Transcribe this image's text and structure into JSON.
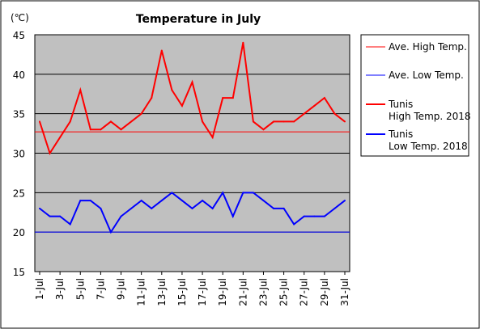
{
  "chart_data": {
    "type": "line",
    "title": "Temperature in July",
    "unit_label": "(℃)",
    "xlabel": "",
    "ylabel": "",
    "ylim": [
      15,
      45
    ],
    "yticks": [
      "15",
      "20",
      "25",
      "30",
      "35",
      "40",
      "45"
    ],
    "x": [
      1,
      2,
      3,
      4,
      5,
      6,
      7,
      8,
      9,
      10,
      11,
      12,
      13,
      14,
      15,
      16,
      17,
      18,
      19,
      20,
      21,
      22,
      23,
      24,
      25,
      26,
      27,
      28,
      29,
      30,
      31
    ],
    "xtick_labels": [
      "1-Jul",
      "3-Jul",
      "5-Jul",
      "7-Jul",
      "9-Jul",
      "11-Jul",
      "13-Jul",
      "15-Jul",
      "17-Jul",
      "19-Jul",
      "21-Jul",
      "23-Jul",
      "25-Jul",
      "27-Jul",
      "29-Jul",
      "31-Jul"
    ],
    "xtick_days": [
      1,
      3,
      5,
      7,
      9,
      11,
      13,
      15,
      17,
      19,
      21,
      23,
      25,
      27,
      29,
      31
    ],
    "grid": true,
    "legend_position": "right",
    "plot_background": "#c0c0c0",
    "reference_lines": [
      {
        "name": "Ave. High Temp.",
        "value": 32.7,
        "color": "#ff0000"
      },
      {
        "name": "Ave. Low Temp.",
        "value": 20,
        "color": "#0000ff"
      }
    ],
    "series": [
      {
        "name": "Tunis High Temp. 2018",
        "legend_lines": [
          "Tunis",
          "High Temp. 2018"
        ],
        "color": "#ff0000",
        "values": [
          34,
          30,
          32,
          34,
          38,
          33,
          33,
          34,
          33,
          34,
          35,
          37,
          43,
          38,
          36,
          39,
          34,
          32,
          37,
          37,
          44,
          34,
          33,
          34,
          34,
          34,
          35,
          36,
          37,
          35,
          34
        ]
      },
      {
        "name": "Tunis Low Temp. 2018",
        "legend_lines": [
          "Tunis",
          "Low Temp. 2018"
        ],
        "color": "#0000ff",
        "values": [
          23,
          22,
          22,
          21,
          24,
          24,
          23,
          20,
          22,
          23,
          24,
          23,
          24,
          25,
          24,
          23,
          24,
          23,
          25,
          22,
          25,
          25,
          24,
          23,
          23,
          21,
          22,
          22,
          22,
          23,
          24
        ]
      }
    ]
  }
}
